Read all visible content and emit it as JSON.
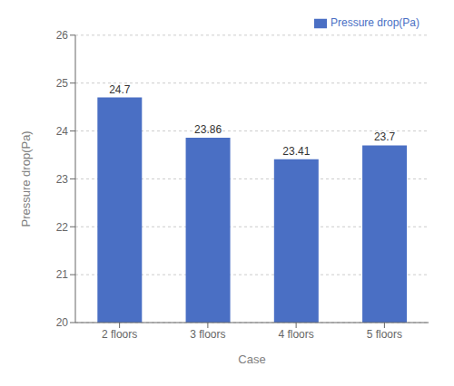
{
  "chart_data": {
    "type": "bar",
    "categories": [
      "2 floors",
      "3 floors",
      "4 floors",
      "5 floors"
    ],
    "series": [
      {
        "name": "Pressure drop(Pa)",
        "color": "#4a6fc4",
        "values": [
          24.7,
          23.86,
          23.41,
          23.7
        ]
      }
    ],
    "xlabel": "Case",
    "ylabel": "Pressure drop(Pa)",
    "ylim": [
      20,
      26
    ],
    "yticks": [
      20,
      21,
      22,
      23,
      24,
      25,
      26
    ],
    "grid": true,
    "legend": "upper right",
    "data_labels": true
  }
}
